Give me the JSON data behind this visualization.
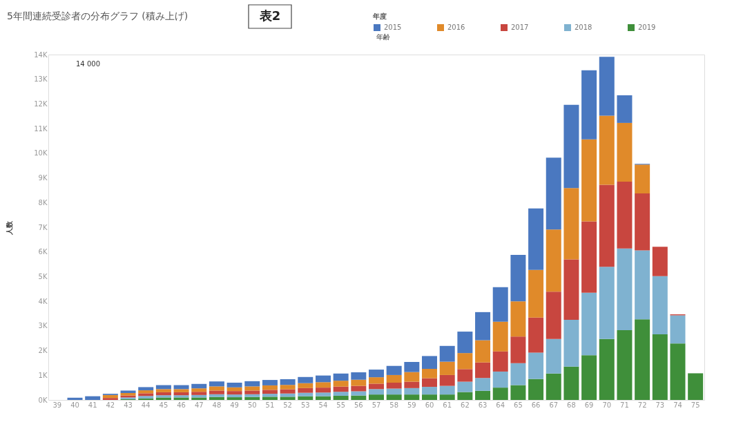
{
  "chart_data": {
    "type": "bar",
    "stacked": true,
    "title": "5年間連続受診者の分布グラフ (積み上げ)",
    "subtitle": "表2",
    "ylabel": "人数",
    "legend_title": "年度",
    "legend": "top right",
    "grid": false,
    "annotations": [
      "14 000",
      "年齢"
    ],
    "categories": [
      "39",
      "40",
      "41",
      "42",
      "43",
      "44",
      "45",
      "46",
      "47",
      "48",
      "49",
      "50",
      "51",
      "52",
      "53",
      "54",
      "55",
      "56",
      "57",
      "58",
      "59",
      "60",
      "61",
      "62",
      "63",
      "64",
      "65",
      "66",
      "67",
      "68",
      "69",
      "70",
      "71",
      "72",
      "73",
      "74",
      "75"
    ],
    "ylim": [
      0,
      14000
    ],
    "yticks": [
      {
        "value": 0,
        "label": "0K"
      },
      {
        "value": 1000,
        "label": "1K"
      },
      {
        "value": 2000,
        "label": "2K"
      },
      {
        "value": 3000,
        "label": "3K"
      },
      {
        "value": 4000,
        "label": "4K"
      },
      {
        "value": 5000,
        "label": "5K"
      },
      {
        "value": 6000,
        "label": "6K"
      },
      {
        "value": 7000,
        "label": "7K"
      },
      {
        "value": 8000,
        "label": "8K"
      },
      {
        "value": 9000,
        "label": "9K"
      },
      {
        "value": 10000,
        "label": "10K"
      },
      {
        "value": 11000,
        "label": "11K"
      },
      {
        "value": 12000,
        "label": "12K"
      },
      {
        "value": 13000,
        "label": "13K"
      },
      {
        "value": 14000,
        "label": "14K"
      }
    ],
    "series": [
      {
        "name": "2019",
        "color": "#3f8f3a",
        "values": [
          null,
          null,
          null,
          null,
          30,
          60,
          100,
          100,
          100,
          120,
          110,
          120,
          130,
          130,
          150,
          150,
          170,
          180,
          220,
          220,
          220,
          220,
          220,
          320,
          370,
          500,
          600,
          850,
          1070,
          1350,
          1810,
          2470,
          2830,
          3270,
          2660,
          2290,
          1080
        ]
      },
      {
        "name": "2018",
        "color": "#7fb2d0",
        "values": [
          null,
          null,
          null,
          null,
          70,
          100,
          90,
          90,
          100,
          110,
          110,
          110,
          120,
          130,
          140,
          150,
          160,
          170,
          220,
          240,
          260,
          310,
          350,
          420,
          520,
          650,
          890,
          1070,
          1400,
          1900,
          2540,
          2930,
          3310,
          2790,
          2360,
          1140,
          null
        ]
      },
      {
        "name": "2017",
        "color": "#c8463f",
        "values": [
          null,
          null,
          null,
          80,
          80,
          110,
          120,
          120,
          130,
          150,
          140,
          150,
          160,
          170,
          190,
          200,
          210,
          220,
          220,
          240,
          260,
          350,
          440,
          510,
          630,
          820,
          1080,
          1420,
          1920,
          2450,
          2890,
          3320,
          2710,
          2310,
          1190,
          40,
          null
        ]
      },
      {
        "name": "2016",
        "color": "#e08a2a",
        "values": [
          null,
          null,
          null,
          120,
          100,
          120,
          130,
          130,
          140,
          170,
          150,
          170,
          180,
          180,
          200,
          220,
          240,
          250,
          260,
          310,
          390,
          380,
          540,
          650,
          900,
          1200,
          1430,
          1930,
          2520,
          2890,
          3320,
          2800,
          2380,
          1170,
          null,
          null,
          null
        ]
      },
      {
        "name": "2015",
        "color": "#4a78c0",
        "values": [
          null,
          90,
          150,
          50,
          100,
          130,
          160,
          160,
          180,
          200,
          190,
          210,
          220,
          230,
          250,
          270,
          290,
          300,
          310,
          370,
          410,
          520,
          640,
          870,
          1140,
          1400,
          1880,
          2490,
          2910,
          3370,
          2800,
          2390,
          1120,
          30,
          null,
          null,
          null
        ]
      }
    ]
  }
}
